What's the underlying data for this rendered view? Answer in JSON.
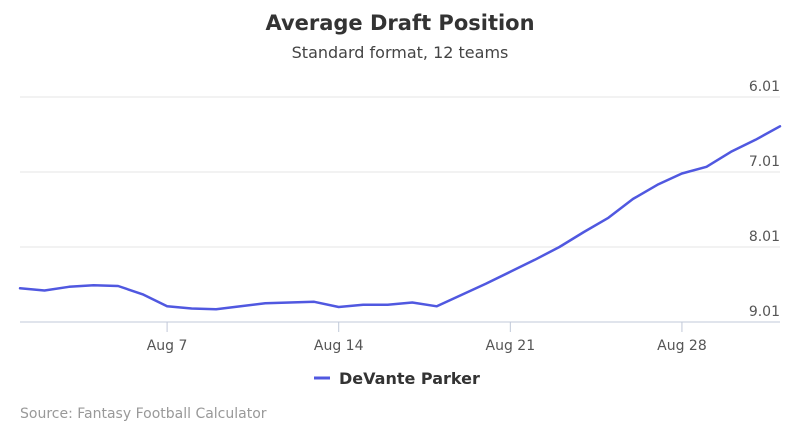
{
  "chart_data": {
    "type": "line",
    "title": "Average Draft Position",
    "subtitle": "Standard format, 12 teams",
    "xlabel": "",
    "ylabel": "",
    "y_reversed": true,
    "ylim": [
      6.01,
      9.01
    ],
    "y_ticks": [
      "6.01",
      "7.01",
      "8.01",
      "9.01"
    ],
    "x_ticks": [
      "Aug 7",
      "Aug 14",
      "Aug 21",
      "Aug 28"
    ],
    "x_tick_positions": [
      7,
      14,
      21,
      28
    ],
    "xlim": [
      1,
      32
    ],
    "grid": true,
    "legend_position": "bottom-center",
    "series": [
      {
        "name": "DeVante Parker",
        "color": "#5058e0",
        "x": [
          1,
          2,
          3,
          4,
          5,
          6,
          7,
          8,
          9,
          10,
          11,
          12,
          13,
          14,
          15,
          16,
          17,
          18,
          19,
          20,
          21,
          22,
          23,
          24,
          25,
          26,
          27,
          28,
          29,
          30,
          31,
          32
        ],
        "values": [
          8.56,
          8.59,
          8.54,
          8.52,
          8.53,
          8.64,
          8.8,
          8.83,
          8.84,
          8.8,
          8.76,
          8.75,
          8.74,
          8.81,
          8.78,
          8.78,
          8.75,
          8.8,
          8.65,
          8.5,
          8.34,
          8.18,
          8.01,
          7.81,
          7.62,
          7.37,
          7.18,
          7.03,
          6.94,
          6.74,
          6.58,
          6.4
        ]
      }
    ]
  },
  "credits": "Source: Fantasy Football Calculator"
}
